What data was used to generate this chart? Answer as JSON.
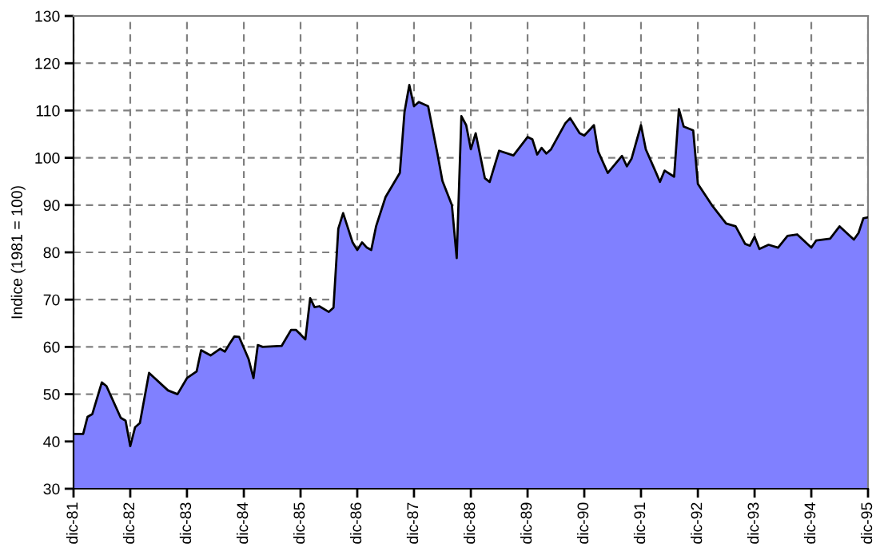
{
  "chart_data": {
    "type": "area",
    "ylabel": "Indice (1981 = 100)",
    "x": [
      "1981-12",
      "1982-02",
      "1982-03",
      "1982-04",
      "1982-06",
      "1982-07",
      "1982-10",
      "1982-11",
      "1982-12",
      "1983-01",
      "1983-02",
      "1983-04",
      "1983-08",
      "1983-10",
      "1983-12",
      "1984-02",
      "1984-03",
      "1984-05",
      "1984-07",
      "1984-08",
      "1984-09",
      "1984-10",
      "1984-11",
      "1985-01",
      "1985-02",
      "1985-03",
      "1985-04",
      "1985-08",
      "1985-10",
      "1985-11",
      "1986-01",
      "1986-02",
      "1986-03",
      "1986-04",
      "1986-06",
      "1986-07",
      "1986-08",
      "1986-09",
      "1986-11",
      "1986-12",
      "1987-01",
      "1987-02",
      "1987-03",
      "1987-04",
      "1987-06",
      "1987-09",
      "1987-10",
      "1987-11",
      "1987-12",
      "1988-01",
      "1988-03",
      "1988-05",
      "1988-06",
      "1988-08",
      "1988-09",
      "1988-10",
      "1988-11",
      "1988-12",
      "1989-01",
      "1989-03",
      "1989-04",
      "1989-06",
      "1989-09",
      "1989-12",
      "1990-01",
      "1990-02",
      "1990-03",
      "1990-04",
      "1990-05",
      "1990-08",
      "1990-09",
      "1990-11",
      "1990-12",
      "1991-02",
      "1991-03",
      "1991-05",
      "1991-08",
      "1991-09",
      "1991-10",
      "1991-12",
      "1992-01",
      "1992-03",
      "1992-04",
      "1992-05",
      "1992-07",
      "1992-08",
      "1992-09",
      "1992-11",
      "1992-12",
      "1993-03",
      "1993-06",
      "1993-08",
      "1993-10",
      "1993-11",
      "1993-12",
      "1994-01",
      "1994-03",
      "1994-05",
      "1994-07",
      "1994-09",
      "1994-12",
      "1995-01",
      "1995-04",
      "1995-06",
      "1995-09",
      "1995-10",
      "1995-11",
      "1995-12"
    ],
    "series": [
      {
        "color": "#8080ff",
        "line_style": "solid",
        "values": [
          41.6,
          41.6,
          45.2,
          45.8,
          52.5,
          51.7,
          45,
          44.4,
          39,
          43,
          43.9,
          54.5,
          50.8,
          50,
          53.4,
          54.8,
          59.3,
          58.2,
          59.6,
          59,
          60.7,
          62.2,
          62.1,
          57.4,
          53.4,
          60.4,
          60,
          60.2,
          63.6,
          63.6,
          61.6,
          70.3,
          68.4,
          68.6,
          67.4,
          68.3,
          85,
          88.3,
          82.1,
          80.5,
          82.1,
          81,
          80.5,
          85.5,
          91.7,
          96.8,
          109.7,
          115.4,
          110.9,
          111.8,
          110.9,
          100.7,
          95.1,
          90,
          78.8,
          108.8,
          106.9,
          101.8,
          105.2,
          95.7,
          94.9,
          101.5,
          100.5,
          104.4,
          103.9,
          100.7,
          102.1,
          100.9,
          101.8,
          107.3,
          108.4,
          105.2,
          104.7,
          106.9,
          101.3,
          96.8,
          100.4,
          98.2,
          99.8,
          106.9,
          101.8,
          97.3,
          94.9,
          97.3,
          96,
          110.3,
          106.6,
          105.8,
          94.5,
          90,
          86.1,
          85.5,
          81.8,
          81.4,
          83.3,
          80.7,
          81.6,
          81,
          83.5,
          83.8,
          81,
          82.5,
          82.9,
          85.5,
          82.7,
          84.1,
          87.2,
          87.4
        ]
      }
    ],
    "xlim": [
      "1981-12",
      "1995-12"
    ],
    "xticks": [
      {
        "value": "1981-12",
        "label": "dic-81"
      },
      {
        "value": "1982-12",
        "label": "dic-82"
      },
      {
        "value": "1983-12",
        "label": "dic-83"
      },
      {
        "value": "1984-12",
        "label": "dic-84"
      },
      {
        "value": "1985-12",
        "label": "dic-85"
      },
      {
        "value": "1986-12",
        "label": "dic-86"
      },
      {
        "value": "1987-12",
        "label": "dic-87"
      },
      {
        "value": "1988-12",
        "label": "dic-88"
      },
      {
        "value": "1989-12",
        "label": "dic-89"
      },
      {
        "value": "1990-12",
        "label": "dic-90"
      },
      {
        "value": "1991-12",
        "label": "dic-91"
      },
      {
        "value": "1992-12",
        "label": "dic-92"
      },
      {
        "value": "1993-12",
        "label": "dic-93"
      },
      {
        "value": "1994-12",
        "label": "dic-94"
      },
      {
        "value": "1995-12",
        "label": "dic-95"
      }
    ],
    "ylim": [
      30,
      130
    ],
    "yticks": [
      30,
      40,
      50,
      60,
      70,
      80,
      90,
      100,
      110,
      120,
      130
    ],
    "grid": true,
    "legend": false
  }
}
